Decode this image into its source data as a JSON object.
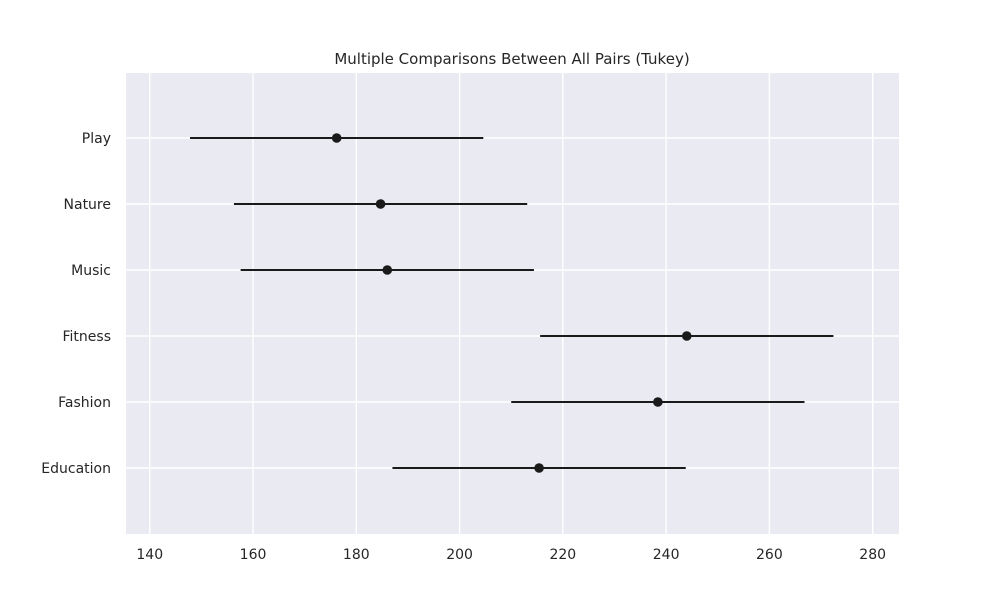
{
  "chart_data": {
    "type": "scatter",
    "title": "Multiple Comparisons Between All Pairs (Tukey)",
    "xlabel": "",
    "ylabel": "",
    "xlim": [
      135.4,
      285.1
    ],
    "xticks": [
      140,
      160,
      180,
      200,
      220,
      240,
      260,
      280
    ],
    "xtick_labels": [
      "140",
      "160",
      "180",
      "200",
      "220",
      "240",
      "260",
      "280"
    ],
    "grid": true,
    "categories": [
      "Play",
      "Nature",
      "Music",
      "Fitness",
      "Fashion",
      "Education"
    ],
    "series": [
      {
        "points": [
          {
            "category": "Play",
            "mean": 176.2,
            "lower": 147.8,
            "upper": 204.6
          },
          {
            "category": "Nature",
            "mean": 184.7,
            "lower": 156.3,
            "upper": 213.1
          },
          {
            "category": "Music",
            "mean": 186.0,
            "lower": 157.6,
            "upper": 214.4
          },
          {
            "category": "Fitness",
            "mean": 244.0,
            "lower": 215.6,
            "upper": 272.4
          },
          {
            "category": "Fashion",
            "mean": 238.4,
            "lower": 210.0,
            "upper": 266.8
          },
          {
            "category": "Education",
            "mean": 215.4,
            "lower": 187.0,
            "upper": 243.8
          }
        ]
      }
    ],
    "colors": {
      "background": "#eaeaf2",
      "grid": "#ffffff",
      "marker": "#1a1a1a",
      "text": "#262626"
    }
  }
}
